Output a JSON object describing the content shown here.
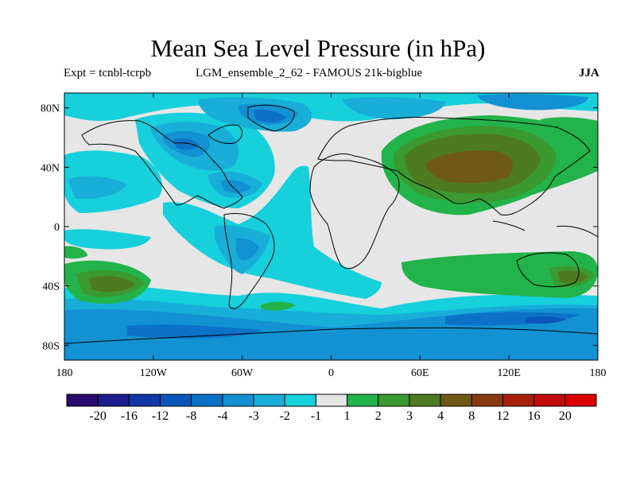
{
  "title": "Mean Sea Level Pressure (in hPa)",
  "subtitle_left": "Expt = tcnbl-tcrpb",
  "subtitle_center": "LGM_ensemble_2_62 - FAMOUS 21k-bigblue",
  "season": "JJA",
  "lat_labels": [
    "80N",
    "40N",
    "0",
    "40S",
    "80S"
  ],
  "lon_labels": [
    "180",
    "120W",
    "60W",
    "0",
    "60E",
    "120E",
    "180"
  ],
  "colorbar": {
    "labels": [
      "-20",
      "-16",
      "-12",
      "-8",
      "-4",
      "-3",
      "-2",
      "-1",
      "1",
      "2",
      "3",
      "4",
      "8",
      "12",
      "16",
      "20"
    ],
    "colors": [
      "#2a0a6e",
      "#1c1c8c",
      "#1238a8",
      "#0a56b8",
      "#0c72c8",
      "#1292d2",
      "#18aed8",
      "#16d0dc",
      "#e6e6e6",
      "#22b34a",
      "#3a9a30",
      "#4e7a20",
      "#6e5a14",
      "#8a3a10",
      "#a6200c",
      "#c20a0a",
      "#dc0000"
    ]
  }
}
